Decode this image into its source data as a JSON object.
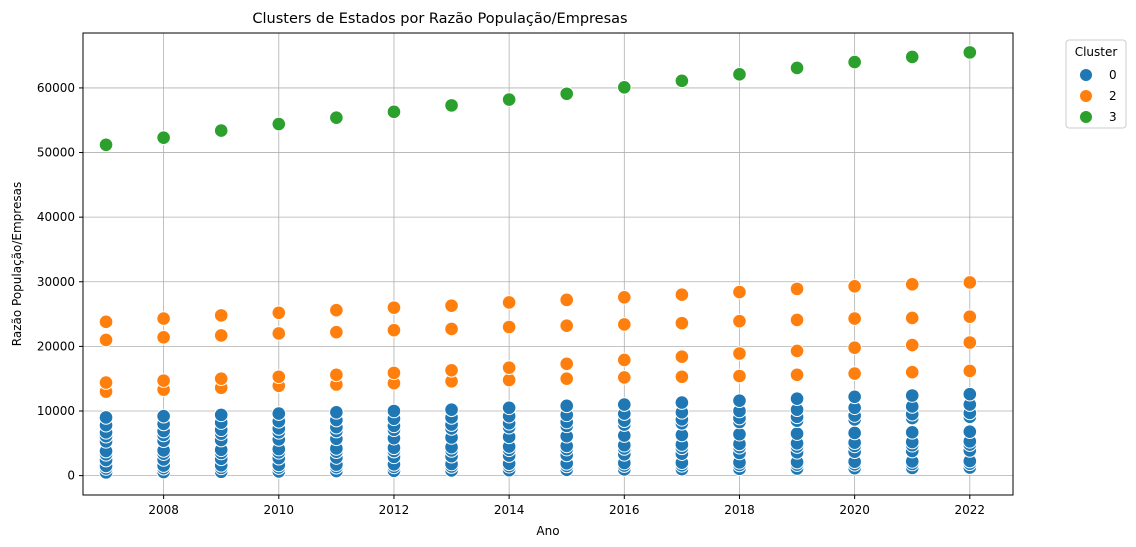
{
  "chart_data": {
    "type": "scatter",
    "title": "Clusters de Estados por Razão População/Empresas",
    "xlabel": "Ano",
    "ylabel": "Razão População/Empresas",
    "xlim": [
      2006.6,
      2022.75
    ],
    "ylim": [
      -3000,
      68500
    ],
    "xticks": [
      2008,
      2010,
      2012,
      2014,
      2016,
      2018,
      2020,
      2022
    ],
    "yticks": [
      0,
      10000,
      20000,
      30000,
      40000,
      50000,
      60000
    ],
    "grid": true,
    "legend": {
      "title": "Cluster",
      "placement": "outside-top-right"
    },
    "x": [
      2007,
      2008,
      2009,
      2010,
      2011,
      2012,
      2013,
      2014,
      2015,
      2016,
      2017,
      2018,
      2019,
      2020,
      2021,
      2022
    ],
    "series": [
      {
        "name": "0",
        "color": "#1f77b4",
        "y_by_x": [
          [
            500,
            1100,
            1500,
            2400,
            3300,
            3800,
            5300,
            6100,
            6700,
            7800,
            9000
          ],
          [
            550,
            1150,
            1550,
            2500,
            3400,
            3900,
            5400,
            6300,
            6900,
            8000,
            9200
          ],
          [
            600,
            1200,
            1600,
            2600,
            3500,
            4000,
            5500,
            6500,
            7100,
            8200,
            9400
          ],
          [
            650,
            1250,
            1650,
            2700,
            3600,
            4100,
            5600,
            6700,
            7300,
            8400,
            9600
          ],
          [
            700,
            1300,
            1700,
            2800,
            3700,
            4200,
            5700,
            6900,
            7500,
            8600,
            9800
          ],
          [
            750,
            1350,
            1750,
            2900,
            3800,
            4300,
            5800,
            7100,
            7700,
            8800,
            10000
          ],
          [
            800,
            1400,
            1800,
            3000,
            3900,
            4400,
            5900,
            7300,
            7900,
            9000,
            10200
          ],
          [
            850,
            1450,
            1850,
            3100,
            4000,
            4500,
            6000,
            7500,
            8100,
            9200,
            10500
          ],
          [
            900,
            1500,
            1900,
            3200,
            4100,
            4600,
            6100,
            7700,
            8300,
            9400,
            10800
          ],
          [
            950,
            1550,
            1950,
            3300,
            4200,
            4700,
            6200,
            7900,
            8500,
            9600,
            11000
          ],
          [
            1000,
            1600,
            2000,
            3400,
            4300,
            4800,
            6300,
            8100,
            8700,
            9800,
            11300
          ],
          [
            1050,
            1650,
            2050,
            3500,
            4400,
            4900,
            6400,
            8300,
            8900,
            10000,
            11600
          ],
          [
            1100,
            1700,
            2100,
            3600,
            4500,
            5000,
            6500,
            8500,
            9100,
            10200,
            11900
          ],
          [
            1150,
            1750,
            2150,
            3700,
            4600,
            5100,
            6600,
            8700,
            9300,
            10500,
            12200
          ],
          [
            1200,
            1800,
            2200,
            3800,
            4700,
            5200,
            6700,
            8900,
            9500,
            10700,
            12400
          ],
          [
            1250,
            1850,
            2250,
            3900,
            4800,
            5300,
            6800,
            9100,
            9700,
            11000,
            12600
          ]
        ]
      },
      {
        "name": "2",
        "color": "#ff7f0e",
        "y_by_x": [
          [
            13000,
            14400,
            21000,
            23800
          ],
          [
            13300,
            14700,
            21400,
            24300
          ],
          [
            13600,
            15000,
            21700,
            24800
          ],
          [
            13900,
            15300,
            22000,
            25200
          ],
          [
            14100,
            15600,
            22200,
            25600
          ],
          [
            14300,
            15900,
            22500,
            26000
          ],
          [
            14600,
            16300,
            22700,
            26300
          ],
          [
            14800,
            16700,
            23000,
            26800
          ],
          [
            15000,
            17300,
            23200,
            27200
          ],
          [
            15200,
            17900,
            23400,
            27600
          ],
          [
            15300,
            18400,
            23600,
            28000
          ],
          [
            15400,
            18900,
            23900,
            28400
          ],
          [
            15600,
            19300,
            24100,
            28900
          ],
          [
            15800,
            19800,
            24300,
            29300
          ],
          [
            16000,
            20200,
            24400,
            29600
          ],
          [
            16200,
            20600,
            24600,
            29900
          ]
        ]
      },
      {
        "name": "3",
        "color": "#2ca02c",
        "y_by_x": [
          [
            51200
          ],
          [
            52300
          ],
          [
            53400
          ],
          [
            54400
          ],
          [
            55400
          ],
          [
            56300
          ],
          [
            57300
          ],
          [
            58200
          ],
          [
            59100
          ],
          [
            60100
          ],
          [
            61100
          ],
          [
            62100
          ],
          [
            63100
          ],
          [
            64000
          ],
          [
            64800
          ],
          [
            65500
          ]
        ]
      }
    ]
  }
}
